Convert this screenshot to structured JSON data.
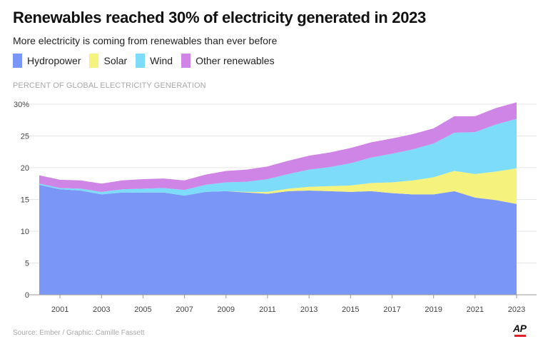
{
  "header": {
    "title": "Renewables reached 30% of electricity generated in 2023",
    "subtitle": "More electricity is coming from renewables than ever before"
  },
  "legend": [
    {
      "label": "Hydropower",
      "color": "#7a96f7"
    },
    {
      "label": "Solar",
      "color": "#f5f27e"
    },
    {
      "label": "Wind",
      "color": "#7ddcf9"
    },
    {
      "label": "Other renewables",
      "color": "#cf85e6"
    }
  ],
  "footer": {
    "source": "Source: Ember / Graphic: Camille Fassett",
    "logo": "AP"
  },
  "chart_data": {
    "type": "area",
    "stacked": true,
    "title": "Renewables reached 30% of electricity generated in 2023",
    "subtitle": "More electricity is coming from renewables than ever before",
    "ylabel": "PERCENT OF GLOBAL ELECTRICITY GENERATION",
    "xlabel": "",
    "x": [
      2000,
      2001,
      2002,
      2003,
      2004,
      2005,
      2006,
      2007,
      2008,
      2009,
      2010,
      2011,
      2012,
      2013,
      2014,
      2015,
      2016,
      2017,
      2018,
      2019,
      2020,
      2021,
      2022,
      2023
    ],
    "xlim": [
      2000,
      2023
    ],
    "ylim": [
      0,
      30
    ],
    "y_ticks": [
      0,
      5,
      10,
      15,
      20,
      25,
      30
    ],
    "y_tick_labels": [
      "0",
      "5",
      "10",
      "15",
      "20",
      "25",
      "30%"
    ],
    "x_ticks": [
      2001,
      2003,
      2005,
      2007,
      2009,
      2011,
      2013,
      2015,
      2017,
      2019,
      2021,
      2023
    ],
    "x_tick_labels": [
      "2001",
      "2003",
      "2005",
      "2007",
      "2009",
      "2011",
      "2013",
      "2015",
      "2017",
      "2019",
      "2021",
      "2023"
    ],
    "grid": true,
    "legend_position": "top-left",
    "series": [
      {
        "name": "Hydropower",
        "color": "#7a96f7",
        "values": [
          17.3,
          16.6,
          16.4,
          15.8,
          16.1,
          16.1,
          16.1,
          15.6,
          16.2,
          16.3,
          16.1,
          15.9,
          16.3,
          16.4,
          16.3,
          16.2,
          16.3,
          16.0,
          15.8,
          15.8,
          16.3,
          15.3,
          14.9,
          14.3
        ]
      },
      {
        "name": "Solar",
        "color": "#f5f27e",
        "values": [
          0.0,
          0.0,
          0.0,
          0.0,
          0.0,
          0.0,
          0.0,
          0.0,
          0.0,
          0.0,
          0.1,
          0.3,
          0.4,
          0.6,
          0.8,
          1.0,
          1.3,
          1.7,
          2.2,
          2.7,
          3.2,
          3.7,
          4.5,
          5.6
        ]
      },
      {
        "name": "Wind",
        "color": "#7ddcf9",
        "values": [
          0.2,
          0.2,
          0.3,
          0.4,
          0.5,
          0.6,
          0.7,
          0.9,
          1.1,
          1.4,
          1.6,
          2.0,
          2.3,
          2.7,
          3.0,
          3.5,
          4.0,
          4.5,
          4.9,
          5.3,
          6.0,
          6.6,
          7.4,
          7.8
        ]
      },
      {
        "name": "Other renewables",
        "color": "#cf85e6",
        "values": [
          1.3,
          1.3,
          1.3,
          1.3,
          1.4,
          1.5,
          1.5,
          1.5,
          1.6,
          1.8,
          1.9,
          2.0,
          2.1,
          2.2,
          2.3,
          2.4,
          2.4,
          2.4,
          2.4,
          2.4,
          2.6,
          2.5,
          2.6,
          2.6
        ]
      }
    ]
  }
}
